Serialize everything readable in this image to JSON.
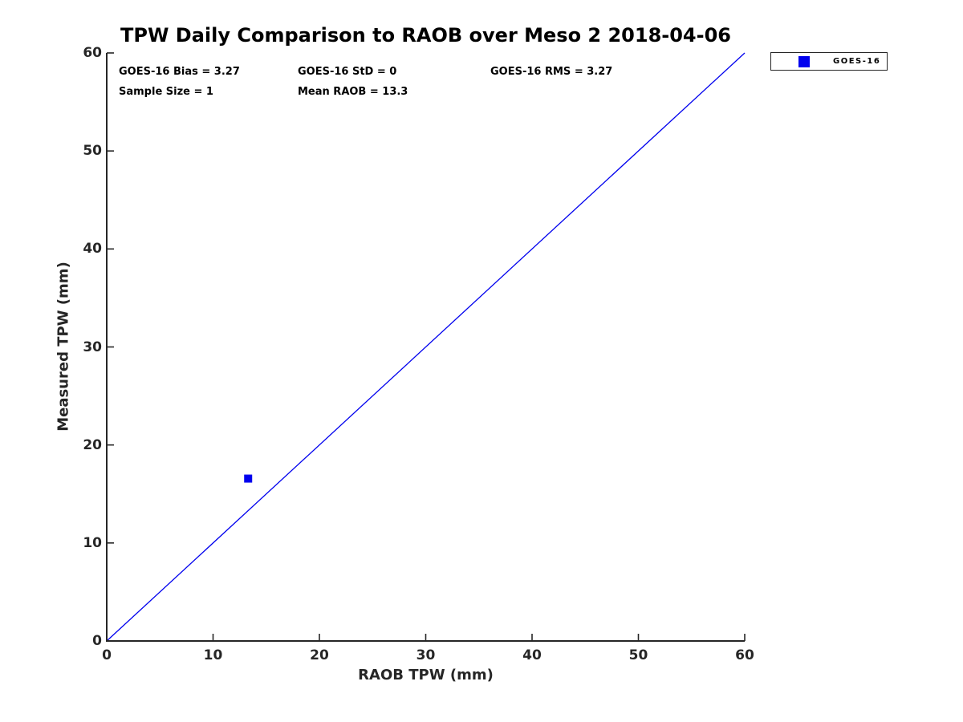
{
  "chart_data": {
    "type": "scatter",
    "title": "TPW Daily Comparison to RAOB over Meso 2 2018-04-06",
    "xlabel": "RAOB TPW (mm)",
    "ylabel": "Measured TPW (mm)",
    "xlim": [
      0,
      60
    ],
    "ylim": [
      0,
      60
    ],
    "x_ticks": [
      0,
      10,
      20,
      30,
      40,
      50,
      60
    ],
    "y_ticks": [
      0,
      10,
      20,
      30,
      40,
      50,
      60
    ],
    "grid": false,
    "box": "off",
    "series": [
      {
        "name": "GOES-16",
        "marker": "filled-square",
        "marker_size": 10,
        "color": "#0000EE",
        "points": [
          {
            "x": 13.3,
            "y": 16.57
          }
        ]
      }
    ],
    "reference_line": {
      "description": "1:1 identity line",
      "from": [
        0,
        0
      ],
      "to": [
        60,
        60
      ],
      "color": "#0000EE",
      "width": 1.3
    },
    "legend": {
      "position": "outside-top-right",
      "entries": [
        {
          "label": "GOES-16",
          "marker": "filled-square",
          "color": "#0000EE"
        }
      ]
    },
    "annotations": [
      {
        "id": "bias",
        "text": "GOES-16 Bias = 3.27"
      },
      {
        "id": "std",
        "text": "GOES-16 StD = 0"
      },
      {
        "id": "rms",
        "text": "GOES-16 RMS = 3.27"
      },
      {
        "id": "sample_size",
        "text": "Sample Size = 1"
      },
      {
        "id": "mean_raob",
        "text": "Mean RAOB = 13.3"
      }
    ],
    "colors": {
      "axis": "#262626",
      "tick_label": "#262626",
      "title_text": "#000000",
      "annotation_text": "#000000",
      "series_blue": "#0000EE",
      "background": "#FFFFFF"
    }
  }
}
